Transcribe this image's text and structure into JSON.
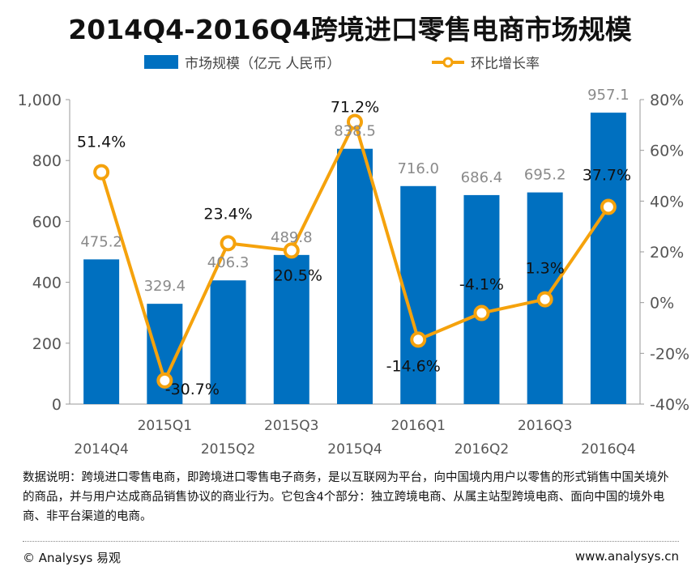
{
  "chart_data": {
    "type": "bar+line",
    "title": "2014Q4-2016Q4跨境进口零售电商市场规模",
    "categories": [
      "2014Q4",
      "2015Q1",
      "2015Q2",
      "2015Q3",
      "2015Q4",
      "2016Q1",
      "2016Q2",
      "2016Q3",
      "2016Q4"
    ],
    "series": [
      {
        "name": "市场规模（亿元 人民币）",
        "type": "bar",
        "axis": "left",
        "values": [
          475.2,
          329.4,
          406.3,
          489.8,
          838.5,
          716.0,
          686.4,
          695.2,
          957.1
        ],
        "labels": [
          "475.2",
          "329.4",
          "406.3",
          "489.8",
          "838.5",
          "716.0",
          "686.4",
          "695.2",
          "957.1"
        ]
      },
      {
        "name": "环比增长率",
        "type": "line",
        "axis": "right",
        "values": [
          51.4,
          -30.7,
          23.4,
          20.5,
          71.2,
          -14.6,
          -4.1,
          1.3,
          37.7
        ],
        "labels": [
          "51.4%",
          "-30.7%",
          "23.4%",
          "20.5%",
          "71.2%",
          "-14.6%",
          "-4.1%",
          "1.3%",
          "37.7%"
        ]
      }
    ],
    "ylim_left": [
      0,
      1000
    ],
    "left_ticks": [
      {
        "v": 0,
        "label": "0"
      },
      {
        "v": 200,
        "label": "200"
      },
      {
        "v": 400,
        "label": "400"
      },
      {
        "v": 600,
        "label": "600"
      },
      {
        "v": 800,
        "label": "800"
      },
      {
        "v": 1000,
        "label": "1,000"
      }
    ],
    "ylim_right": [
      -40,
      80
    ],
    "right_ticks": [
      {
        "v": -40,
        "label": "-40%"
      },
      {
        "v": -20,
        "label": "-20%"
      },
      {
        "v": 0,
        "label": "0%"
      },
      {
        "v": 20,
        "label": "20%"
      },
      {
        "v": 40,
        "label": "40%"
      },
      {
        "v": 60,
        "label": "60%"
      },
      {
        "v": 80,
        "label": "80%"
      }
    ],
    "legend_position": "top",
    "colors": {
      "bar": "#0070c0",
      "line": "#f5a20c",
      "marker_fill": "#ffffff"
    }
  },
  "note": "数据说明：跨境进口零售电商，即跨境进口零售电子商务，是以互联网为平台，向中国境内用户以零售的形式销售中国关境外的商品，并与用户达成商品销售协议的商业行为。它包含4个部分：独立跨境电商、从属主站型跨境电商、面向中国的境外电商、非平台渠道的电商。",
  "footer": {
    "left": "© Analysys 易观",
    "right": "www.analysys.cn"
  }
}
